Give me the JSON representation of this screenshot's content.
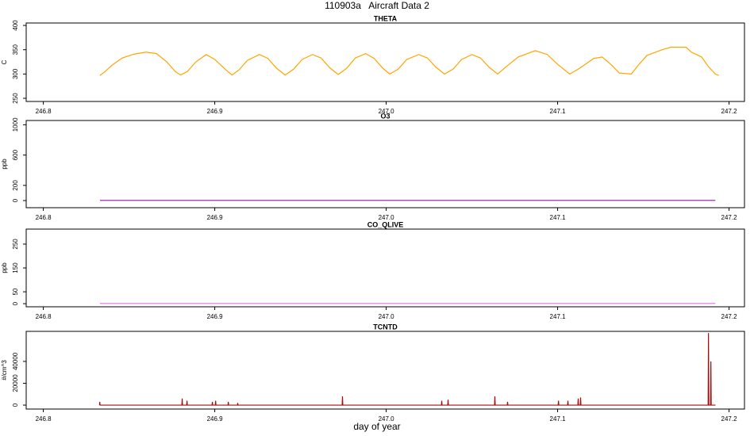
{
  "title": "110903a   Aircraft Data 2",
  "xlabel": "day of year",
  "chart_data": [
    {
      "type": "line",
      "title": "THETA",
      "ylabel": "C",
      "color": "#ffa500",
      "x": [
        246.833,
        246.836,
        246.84,
        246.846,
        246.853,
        246.86,
        246.866,
        246.872,
        246.877,
        246.88,
        246.884,
        246.889,
        246.895,
        246.9,
        246.906,
        246.91,
        246.914,
        246.919,
        246.926,
        246.931,
        246.936,
        246.941,
        246.946,
        246.951,
        246.957,
        246.962,
        246.967,
        246.972,
        246.977,
        246.982,
        246.988,
        246.993,
        246.998,
        247.002,
        247.007,
        247.012,
        247.019,
        247.024,
        247.029,
        247.034,
        247.039,
        247.044,
        247.05,
        247.055,
        247.06,
        247.065,
        247.07,
        247.077,
        247.087,
        247.094,
        247.1,
        247.107,
        247.112,
        247.117,
        247.121,
        247.126,
        247.131,
        247.136,
        247.143,
        247.147,
        247.152,
        247.161,
        247.166,
        247.175,
        247.178,
        247.184,
        247.188,
        247.192,
        247.194
      ],
      "values": [
        297,
        305,
        318,
        333,
        341,
        345,
        342,
        325,
        305,
        298,
        305,
        325,
        340,
        330,
        310,
        298,
        308,
        328,
        340,
        332,
        312,
        298,
        310,
        330,
        340,
        333,
        313,
        299,
        312,
        333,
        342,
        332,
        312,
        300,
        310,
        330,
        340,
        333,
        314,
        300,
        310,
        330,
        340,
        333,
        314,
        300,
        315,
        335,
        348,
        340,
        320,
        300,
        310,
        322,
        332,
        335,
        320,
        302,
        300,
        318,
        338,
        350,
        355,
        355,
        345,
        335,
        315,
        300,
        297
      ],
      "xlim": [
        246.79,
        247.209
      ],
      "xticks": [
        246.8,
        246.9,
        {
          "value": 247,
          "label": "247.0"
        },
        247.1,
        247.2
      ],
      "ylim": [
        243.5,
        405
      ],
      "yticks": [
        250,
        300,
        350,
        400
      ]
    },
    {
      "type": "line",
      "title": "O3",
      "ylabel": "ppb",
      "color": "#9b30b0",
      "x": [
        246.833,
        247.192
      ],
      "values": [
        3,
        3
      ],
      "xlim": [
        246.79,
        247.209
      ],
      "xticks": [
        246.8,
        246.9,
        {
          "value": 247,
          "label": "247.0"
        },
        247.1,
        247.2
      ],
      "ylim": [
        -94,
        1056
      ],
      "yticks": [
        0,
        200,
        600,
        1000
      ]
    },
    {
      "type": "line",
      "title": "CO_QLIVE",
      "ylabel": "ppb",
      "color": "#e070e0",
      "x": [
        246.833,
        247.192
      ],
      "values": [
        1,
        1
      ],
      "xlim": [
        246.79,
        247.209
      ],
      "xticks": [
        246.8,
        246.9,
        {
          "value": 247,
          "label": "247.0"
        },
        247.1,
        247.2
      ],
      "ylim": [
        -13,
        313
      ],
      "yticks": [
        0,
        50,
        150,
        250
      ]
    },
    {
      "type": "line",
      "title": "TCNTD",
      "ylabel": "#/cm^3",
      "color": "#a01010",
      "x": [
        246.8328,
        246.8329,
        246.8331,
        246.8808,
        246.881,
        246.8812,
        246.8836,
        246.8838,
        246.884,
        246.8984,
        246.8986,
        246.8988,
        246.9003,
        246.9005,
        246.9007,
        246.9077,
        246.9079,
        246.9081,
        246.9132,
        246.9134,
        246.9136,
        246.9743,
        246.9745,
        246.9747,
        247.0322,
        247.0324,
        247.0326,
        247.0359,
        247.0361,
        247.0363,
        247.0632,
        247.0634,
        247.0636,
        247.0706,
        247.0708,
        247.071,
        247.1003,
        247.1005,
        247.1007,
        247.1058,
        247.106,
        247.1062,
        247.1118,
        247.112,
        247.1122,
        247.1132,
        247.1134,
        247.1136,
        247.1878,
        247.188,
        247.1882,
        247.1892,
        247.1894,
        247.1896,
        247.1921
      ],
      "values": [
        0,
        3000,
        0,
        0,
        6000,
        0,
        0,
        4000,
        0,
        0,
        3000,
        0,
        0,
        4000,
        0,
        0,
        3000,
        0,
        0,
        2000,
        0,
        0,
        8000,
        0,
        0,
        4000,
        0,
        0,
        5000,
        0,
        0,
        8000,
        0,
        0,
        3000,
        0,
        0,
        4000,
        0,
        0,
        4000,
        0,
        0,
        6000,
        0,
        0,
        7000,
        0,
        0,
        66000,
        0,
        0,
        40000,
        0,
        0
      ],
      "xlim": [
        246.79,
        247.209
      ],
      "xticks": [
        246.8,
        246.9,
        {
          "value": 247,
          "label": "247.0"
        },
        247.1,
        247.2
      ],
      "ylim": [
        -3600,
        67500
      ],
      "yticks": [
        0,
        20000,
        40000
      ]
    }
  ]
}
